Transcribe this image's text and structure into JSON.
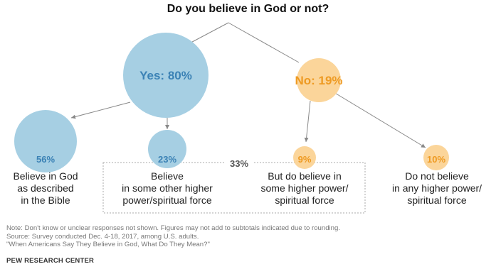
{
  "title": "Do you believe in God or not?",
  "colors": {
    "yes_fill": "#a6cfe3",
    "yes_text": "#3b82b5",
    "no_fill": "#fbd59a",
    "no_text": "#ee9a22",
    "line": "#888888",
    "dotted": "#aaaaaa"
  },
  "nodes": {
    "yes": {
      "label": "Yes: 80%",
      "value": 80
    },
    "no": {
      "label": "No: 19%",
      "value": 19
    },
    "bible": {
      "pct": "56%",
      "value": 56,
      "desc": [
        "Believe in God",
        "as described",
        "in the Bible"
      ]
    },
    "other_higher": {
      "pct": "23%",
      "value": 23,
      "desc": [
        "Believe",
        "in some other higher",
        "power/spiritual force"
      ]
    },
    "no_but_higher": {
      "pct": "9%",
      "value": 9,
      "desc": [
        "But do believe in",
        "some higher power/",
        "spiritual force"
      ]
    },
    "no_higher": {
      "pct": "10%",
      "value": 10,
      "desc": [
        "Do not believe",
        "in any higher power/",
        "spiritual force"
      ]
    }
  },
  "group_total": "33%",
  "notes": [
    "Note: Don't know or unclear responses not shown. Figures may not add to subtotals indicated due to rounding.",
    "Source: Survey conducted Dec. 4-18, 2017, among U.S. adults.",
    "\"When Americans Say They Believe in God, What Do They Mean?\""
  ],
  "brand": "PEW RESEARCH CENTER"
}
